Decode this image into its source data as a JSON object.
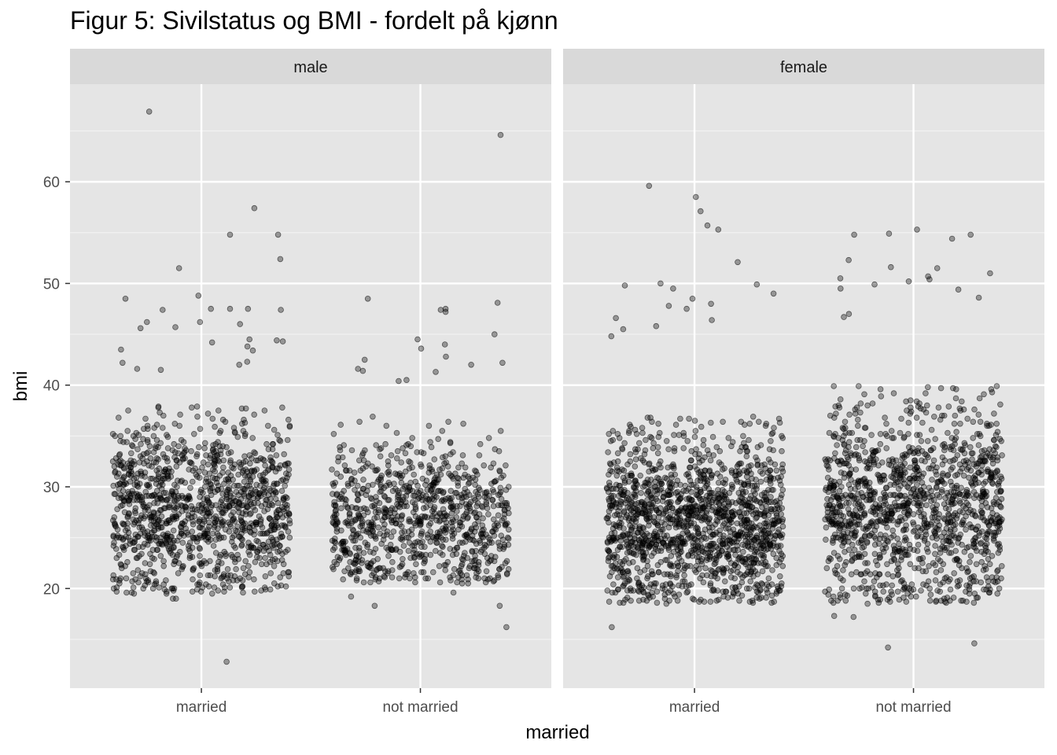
{
  "chart_data": {
    "type": "scatter",
    "title": "Figur 5: Sivilstatus og BMI - fordelt på kjønn",
    "xlabel": "married",
    "ylabel": "bmi",
    "ylim": [
      10.2,
      69.6
    ],
    "yticks": [
      20,
      30,
      40,
      50,
      60
    ],
    "categories": [
      "married",
      "not married"
    ],
    "jitter": true,
    "grid": true,
    "point_color": "#000000",
    "point_alpha": 0.4,
    "panel_background": "#e5e5e5",
    "strip_background": "#d9d9d9",
    "facets": [
      {
        "label": "male",
        "groups": [
          {
            "category": "married",
            "n_approx": 1200,
            "range": [
              19.5,
              38.0
            ],
            "mode": 28.0,
            "outliers": [
              12.8,
              19.0,
              19.0,
              19.6,
              20.0,
              20.1,
              20.2,
              41.5,
              41.6,
              42.0,
              42.2,
              42.3,
              43.4,
              43.5,
              43.8,
              44.2,
              44.3,
              44.4,
              44.5,
              45.6,
              45.7,
              46.0,
              46.2,
              46.2,
              47.4,
              47.4,
              47.5,
              47.5,
              47.5,
              48.5,
              48.8,
              51.5,
              52.4,
              54.8,
              54.8,
              57.4,
              66.9
            ]
          },
          {
            "category": "not married",
            "n_approx": 900,
            "range": [
              20.5,
              37.0
            ],
            "mode": 27.0,
            "outliers": [
              16.2,
              18.3,
              18.3,
              19.2,
              19.6,
              40.4,
              40.5,
              41.3,
              41.4,
              41.6,
              42.0,
              42.2,
              42.5,
              42.8,
              43.6,
              44.0,
              44.5,
              45.0,
              47.2,
              47.4,
              47.5,
              48.1,
              48.5,
              64.6
            ]
          }
        ]
      },
      {
        "label": "female",
        "groups": [
          {
            "category": "married",
            "n_approx": 1500,
            "range": [
              18.5,
              37.0
            ],
            "mode": 26.5,
            "outliers": [
              16.2,
              44.8,
              45.5,
              45.8,
              46.4,
              46.6,
              47.5,
              47.8,
              48.0,
              48.5,
              49.0,
              49.5,
              49.8,
              49.9,
              50.0,
              52.1,
              55.3,
              55.7,
              57.1,
              58.5,
              59.6
            ]
          },
          {
            "category": "not married",
            "n_approx": 1300,
            "range": [
              18.5,
              40.0
            ],
            "mode": 28.0,
            "outliers": [
              14.2,
              14.6,
              17.2,
              17.3,
              46.7,
              47.0,
              48.6,
              49.4,
              49.5,
              49.9,
              50.2,
              50.4,
              50.5,
              50.7,
              51.0,
              51.5,
              51.6,
              52.3,
              54.4,
              54.8,
              54.8,
              54.9,
              55.3
            ]
          }
        ]
      }
    ]
  }
}
